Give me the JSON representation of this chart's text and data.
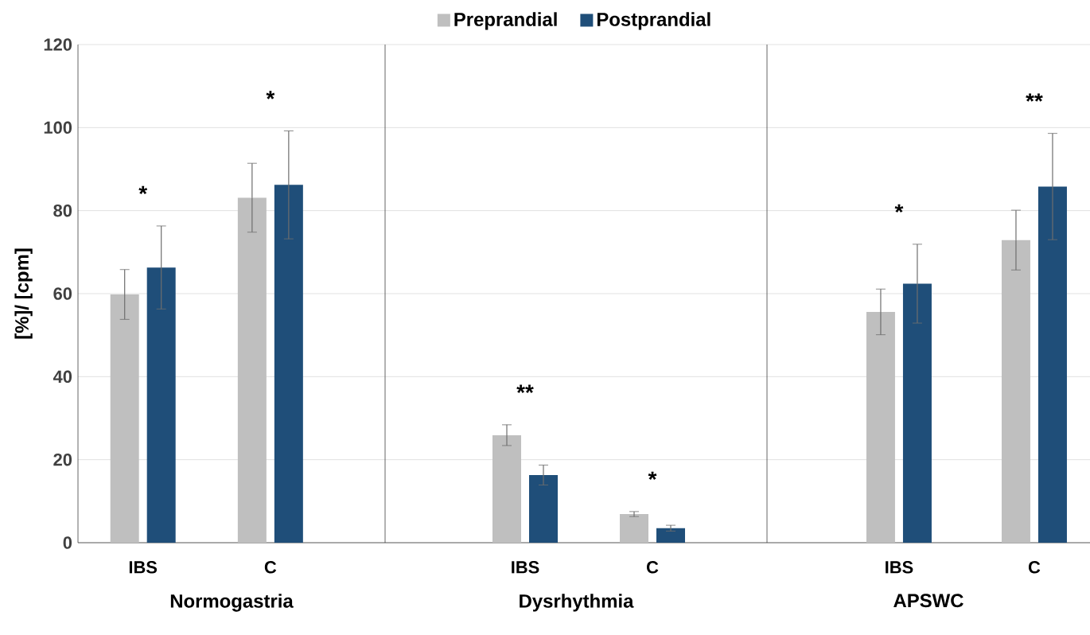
{
  "chart_data": [
    {
      "type": "bar",
      "categories": [
        "IBS",
        "C"
      ],
      "xlabel": "Normogastria",
      "ylabel": "[%]/ [cpm]",
      "ylim": [
        0,
        120
      ],
      "yticks": [
        0,
        20,
        40,
        60,
        80,
        100,
        120
      ],
      "grid": "y",
      "series": [
        {
          "color": "#bfbfbf",
          "values": [
            59.8,
            83.1
          ],
          "errors": [
            6,
            8.3
          ]
        },
        {
          "color": "#1f4e79",
          "values": [
            66.3,
            86.2
          ],
          "errors": [
            10,
            13
          ]
        }
      ],
      "annotations": [
        "*",
        "*"
      ]
    },
    {
      "type": "bar",
      "categories": [
        "IBS",
        "C"
      ],
      "xlabel": "Dysrhythmia",
      "ylim": [
        0,
        120
      ],
      "yticks": [
        0,
        20,
        40,
        60,
        80,
        100,
        120
      ],
      "grid": "y",
      "tick_labels": "x",
      "legend": "top",
      "series": [
        {
          "name": "Preprandial",
          "color": "#bfbfbf",
          "values": [
            25.9,
            6.9
          ],
          "errors": [
            2.5,
            0.6
          ]
        },
        {
          "name": "Postprandial",
          "color": "#1f4e79",
          "values": [
            16.3,
            3.5
          ],
          "errors": [
            2.4,
            0.7
          ]
        }
      ],
      "annotations": [
        "**",
        "*"
      ]
    },
    {
      "type": "bar",
      "categories": [
        "IBS",
        "C"
      ],
      "xlabel": "APSWC",
      "ylim": [
        0,
        120
      ],
      "yticks": [
        0,
        20,
        40,
        60,
        80,
        100,
        120
      ],
      "grid": "y",
      "tick_labels": "x",
      "series": [
        {
          "color": "#bfbfbf",
          "values": [
            55.6,
            72.9
          ],
          "errors": [
            5.5,
            7.2
          ]
        },
        {
          "color": "#1f4e79",
          "values": [
            62.4,
            85.8
          ],
          "errors": [
            9.5,
            12.8
          ]
        }
      ],
      "annotations": [
        "*",
        "**"
      ]
    }
  ]
}
